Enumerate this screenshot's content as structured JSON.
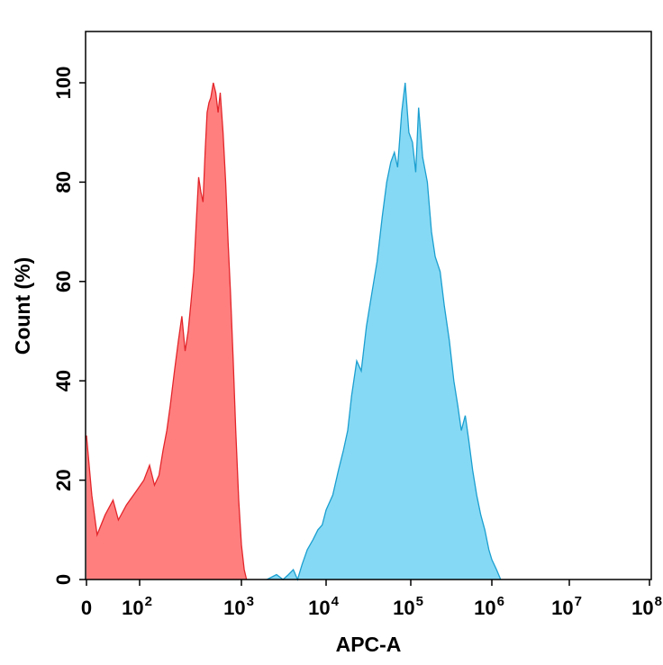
{
  "chart_data": {
    "type": "area",
    "xlabel": "APC-A",
    "ylabel": "Count (%)",
    "x_scale": "biexponential-log",
    "xlim": [
      0,
      100000000
    ],
    "ylim": [
      0,
      110
    ],
    "x_ticks": [
      {
        "value": 0,
        "label": "0",
        "exp": ""
      },
      {
        "value": 100,
        "label": "10",
        "exp": "2"
      },
      {
        "value": 1000,
        "label": "10",
        "exp": "3"
      },
      {
        "value": 10000,
        "label": "10",
        "exp": "4"
      },
      {
        "value": 100000,
        "label": "10",
        "exp": "5"
      },
      {
        "value": 1000000,
        "label": "10",
        "exp": "6"
      },
      {
        "value": 10000000,
        "label": "10",
        "exp": "7"
      },
      {
        "value": 100000000,
        "label": "10",
        "exp": "8"
      }
    ],
    "y_ticks": [
      0,
      20,
      40,
      60,
      80,
      100
    ],
    "grid": false,
    "legend": "none",
    "series": [
      {
        "color_fill": "#ff7f7f",
        "color_line": "#e3262b",
        "points": [
          [
            0,
            29
          ],
          [
            10,
            17
          ],
          [
            20,
            9
          ],
          [
            35,
            13
          ],
          [
            50,
            16
          ],
          [
            60,
            12
          ],
          [
            75,
            15
          ],
          [
            95,
            18
          ],
          [
            110,
            20
          ],
          [
            125,
            23
          ],
          [
            140,
            19
          ],
          [
            155,
            21
          ],
          [
            170,
            26
          ],
          [
            185,
            30
          ],
          [
            200,
            35
          ],
          [
            220,
            42
          ],
          [
            240,
            48
          ],
          [
            260,
            53
          ],
          [
            280,
            46
          ],
          [
            300,
            50
          ],
          [
            320,
            56
          ],
          [
            340,
            62
          ],
          [
            360,
            72
          ],
          [
            380,
            81
          ],
          [
            400,
            78
          ],
          [
            420,
            76
          ],
          [
            440,
            86
          ],
          [
            460,
            94
          ],
          [
            480,
            96
          ],
          [
            500,
            97
          ],
          [
            530,
            100
          ],
          [
            560,
            98
          ],
          [
            590,
            94
          ],
          [
            620,
            98
          ],
          [
            660,
            90
          ],
          [
            700,
            80
          ],
          [
            740,
            68
          ],
          [
            780,
            58
          ],
          [
            830,
            44
          ],
          [
            880,
            30
          ],
          [
            940,
            16
          ],
          [
            1000,
            7
          ],
          [
            1080,
            2
          ],
          [
            1150,
            0
          ]
        ]
      },
      {
        "color_fill": "#86d9f4",
        "color_line": "#1b9fd0",
        "points": [
          [
            2000,
            0
          ],
          [
            2600,
            1
          ],
          [
            3100,
            0
          ],
          [
            3600,
            1
          ],
          [
            4100,
            2
          ],
          [
            4600,
            0
          ],
          [
            5200,
            3
          ],
          [
            6000,
            6
          ],
          [
            7000,
            8
          ],
          [
            8000,
            10
          ],
          [
            9000,
            11
          ],
          [
            10000,
            14
          ],
          [
            12000,
            17
          ],
          [
            14000,
            22
          ],
          [
            16000,
            26
          ],
          [
            18000,
            30
          ],
          [
            20000,
            37
          ],
          [
            23000,
            44
          ],
          [
            26000,
            42
          ],
          [
            30000,
            51
          ],
          [
            35000,
            58
          ],
          [
            40000,
            64
          ],
          [
            46000,
            73
          ],
          [
            52000,
            80
          ],
          [
            58000,
            84
          ],
          [
            64000,
            86
          ],
          [
            70000,
            83
          ],
          [
            78000,
            94
          ],
          [
            86000,
            100
          ],
          [
            95000,
            90
          ],
          [
            105000,
            88
          ],
          [
            115000,
            82
          ],
          [
            125000,
            95
          ],
          [
            140000,
            85
          ],
          [
            160000,
            80
          ],
          [
            180000,
            70
          ],
          [
            200000,
            65
          ],
          [
            230000,
            62
          ],
          [
            260000,
            55
          ],
          [
            300000,
            48
          ],
          [
            340000,
            40
          ],
          [
            380000,
            35
          ],
          [
            420000,
            30
          ],
          [
            470000,
            33
          ],
          [
            520000,
            28
          ],
          [
            580000,
            22
          ],
          [
            650000,
            17
          ],
          [
            730000,
            13
          ],
          [
            820000,
            10
          ],
          [
            920000,
            6
          ],
          [
            1000000,
            4
          ],
          [
            1150000,
            2
          ],
          [
            1300000,
            0
          ]
        ]
      }
    ]
  }
}
